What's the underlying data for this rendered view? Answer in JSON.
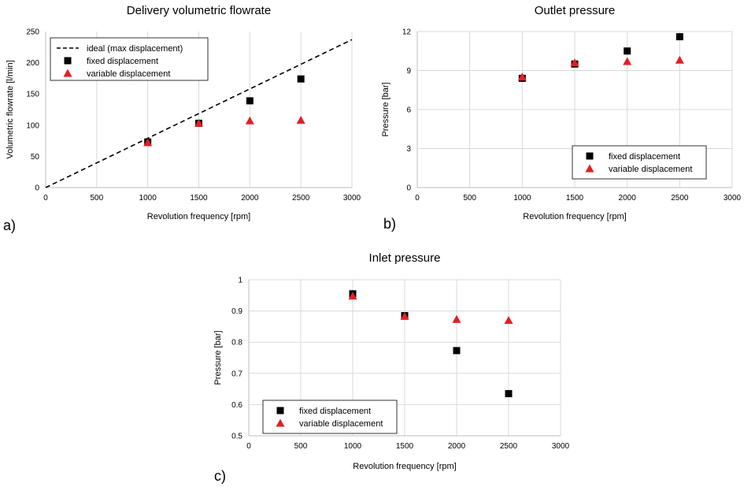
{
  "colors": {
    "fixed": "#000000",
    "variable": "#e31e24",
    "grid": "#d9d9d9",
    "axis": "#bfbfbf"
  },
  "chart_data": [
    {
      "id": "a",
      "panel_label": "a)",
      "type": "scatter",
      "title": "Delivery volumetric flowrate",
      "xlabel": "Revolution frequency [rpm]",
      "ylabel": "Volumetric flowrate [l/min]",
      "xlim": [
        0,
        3000
      ],
      "ylim": [
        0,
        250
      ],
      "xticks": [
        0,
        500,
        1000,
        1500,
        2000,
        2500,
        3000
      ],
      "yticks": [
        0,
        50,
        100,
        150,
        200,
        250
      ],
      "xgrid": true,
      "ygrid": false,
      "legend": "top-left",
      "series": [
        {
          "name": "ideal (max displacement)",
          "style": "dashed-line",
          "x": [
            0,
            3000
          ],
          "y": [
            0,
            237
          ]
        },
        {
          "name": "fixed displacement",
          "style": "square",
          "x": [
            1000,
            1500,
            2000,
            2500
          ],
          "y": [
            73,
            103,
            139,
            174
          ]
        },
        {
          "name": "variable displacement",
          "style": "triangle",
          "x": [
            1000,
            1500,
            2000,
            2500
          ],
          "y": [
            72,
            103,
            107,
            108
          ]
        }
      ]
    },
    {
      "id": "b",
      "panel_label": "b)",
      "type": "scatter",
      "title": "Outlet pressure",
      "xlabel": "Revolution frequency [rpm]",
      "ylabel": "Pressure [bar]",
      "xlim": [
        0,
        3000
      ],
      "ylim": [
        0,
        12
      ],
      "xticks": [
        0,
        500,
        1000,
        1500,
        2000,
        2500,
        3000
      ],
      "yticks": [
        0,
        3,
        6,
        9,
        12
      ],
      "xgrid": true,
      "ygrid": true,
      "legend": "bottom-right",
      "series": [
        {
          "name": "fixed displacement",
          "style": "square",
          "x": [
            1000,
            1500,
            2000,
            2500
          ],
          "y": [
            8.4,
            9.5,
            10.5,
            11.6
          ]
        },
        {
          "name": "variable displacement",
          "style": "triangle",
          "x": [
            1000,
            1500,
            2000,
            2500
          ],
          "y": [
            8.5,
            9.6,
            9.7,
            9.8
          ]
        }
      ]
    },
    {
      "id": "c",
      "panel_label": "c)",
      "type": "scatter",
      "title": "Inlet pressure",
      "xlabel": "Revolution frequency [rpm]",
      "ylabel": "Pressure [bar]",
      "xlim": [
        0,
        3000
      ],
      "ylim": [
        0.5,
        1
      ],
      "xticks": [
        0,
        500,
        1000,
        1500,
        2000,
        2500,
        3000
      ],
      "yticks": [
        0.5,
        0.6,
        0.7,
        0.8,
        0.9,
        1
      ],
      "xgrid": true,
      "ygrid": true,
      "legend": "bottom-left",
      "series": [
        {
          "name": "fixed displacement",
          "style": "square",
          "x": [
            1000,
            1500,
            2000,
            2500
          ],
          "y": [
            0.955,
            0.885,
            0.773,
            0.635
          ]
        },
        {
          "name": "variable displacement",
          "style": "triangle",
          "x": [
            1000,
            1500,
            2000,
            2500
          ],
          "y": [
            0.948,
            0.883,
            0.873,
            0.87
          ]
        }
      ]
    }
  ]
}
